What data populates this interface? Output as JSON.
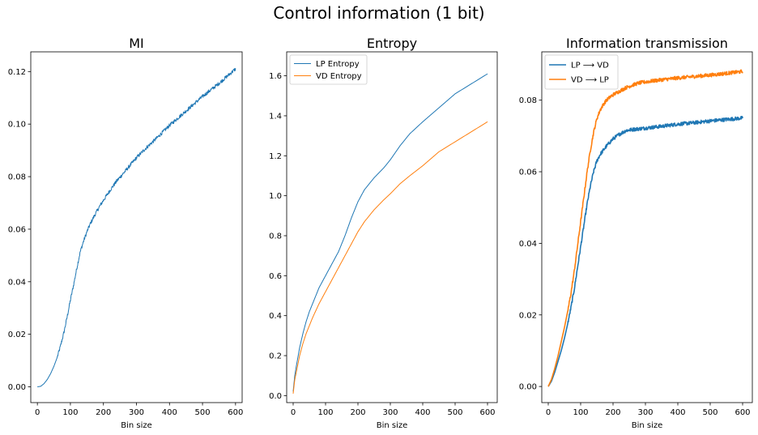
{
  "figure_title": "Control information (1 bit)",
  "chart_data": [
    {
      "type": "line",
      "title": "MI",
      "xlabel": "Bin size",
      "ylabel": "",
      "xlim": [
        -20,
        620
      ],
      "ylim": [
        -0.006,
        0.1275
      ],
      "xticks": [
        0,
        100,
        200,
        300,
        400,
        500,
        600
      ],
      "yticks": [
        0.0,
        0.02,
        0.04,
        0.06,
        0.08,
        0.1,
        0.12
      ],
      "ytick_labels": [
        "0.00",
        "0.02",
        "0.04",
        "0.06",
        "0.08",
        "0.10",
        "0.12"
      ],
      "grid": false,
      "legend": null,
      "series": [
        {
          "color": "#1f77b4",
          "linewidth": 1,
          "noise": 0.0007,
          "x": [
            0,
            10,
            20,
            30,
            40,
            50,
            60,
            70,
            80,
            90,
            100,
            110,
            120,
            130,
            140,
            150,
            160,
            170,
            180,
            190,
            200,
            220,
            240,
            260,
            280,
            300,
            330,
            360,
            400,
            450,
            500,
            550,
            600
          ],
          "y": [
            0.0,
            0.0002,
            0.0012,
            0.0028,
            0.005,
            0.0078,
            0.0112,
            0.0155,
            0.0205,
            0.0265,
            0.033,
            0.039,
            0.0455,
            0.0515,
            0.0555,
            0.059,
            0.062,
            0.0645,
            0.0668,
            0.069,
            0.071,
            0.0748,
            0.0783,
            0.0812,
            0.0842,
            0.0872,
            0.091,
            0.0945,
            0.0995,
            0.105,
            0.1105,
            0.1155,
            0.121
          ]
        }
      ]
    },
    {
      "type": "line",
      "title": "Entropy",
      "xlabel": "Bin size",
      "ylabel": "",
      "xlim": [
        -20,
        630
      ],
      "ylim": [
        -0.035,
        1.72
      ],
      "xticks": [
        0,
        100,
        200,
        300,
        400,
        500,
        600
      ],
      "yticks": [
        0.0,
        0.2,
        0.4,
        0.6,
        0.8,
        1.0,
        1.2,
        1.4,
        1.6
      ],
      "ytick_labels": [
        "0.0",
        "0.2",
        "0.4",
        "0.6",
        "0.8",
        "1.0",
        "1.2",
        "1.4",
        "1.6"
      ],
      "grid": false,
      "legend": "upper-left",
      "series": [
        {
          "name": "LP Entropy",
          "color": "#1f77b4",
          "linewidth": 1,
          "noise": 0,
          "x": [
            0,
            5,
            10,
            20,
            30,
            40,
            50,
            60,
            80,
            100,
            120,
            140,
            160,
            180,
            200,
            220,
            250,
            280,
            300,
            330,
            360,
            400,
            450,
            500,
            550,
            600
          ],
          "y": [
            0.02,
            0.1,
            0.15,
            0.24,
            0.31,
            0.37,
            0.42,
            0.46,
            0.54,
            0.6,
            0.66,
            0.72,
            0.8,
            0.89,
            0.97,
            1.03,
            1.09,
            1.14,
            1.18,
            1.25,
            1.31,
            1.37,
            1.44,
            1.51,
            1.56,
            1.61
          ]
        },
        {
          "name": "VD Entropy",
          "color": "#ff7f0e",
          "linewidth": 1,
          "noise": 0,
          "x": [
            0,
            5,
            10,
            20,
            30,
            40,
            50,
            60,
            80,
            100,
            120,
            140,
            160,
            180,
            200,
            220,
            250,
            280,
            300,
            330,
            360,
            400,
            450,
            500,
            550,
            600
          ],
          "y": [
            0.01,
            0.08,
            0.12,
            0.2,
            0.26,
            0.31,
            0.35,
            0.39,
            0.46,
            0.52,
            0.58,
            0.64,
            0.7,
            0.76,
            0.82,
            0.87,
            0.93,
            0.98,
            1.01,
            1.06,
            1.1,
            1.15,
            1.22,
            1.27,
            1.32,
            1.37
          ]
        }
      ]
    },
    {
      "type": "line",
      "title": "Information transmission",
      "xlabel": "Bin size",
      "ylabel": "",
      "xlim": [
        -20,
        630
      ],
      "ylim": [
        -0.0045,
        0.0935
      ],
      "xticks": [
        0,
        100,
        200,
        300,
        400,
        500,
        600
      ],
      "yticks": [
        0.0,
        0.02,
        0.04,
        0.06,
        0.08
      ],
      "ytick_labels": [
        "0.00",
        "0.02",
        "0.04",
        "0.06",
        "0.08"
      ],
      "grid": false,
      "legend": "upper-left",
      "series": [
        {
          "name": "LP ⟶ VD",
          "color": "#1f77b4",
          "linewidth": 1.6,
          "noise": 0.0005,
          "x": [
            0,
            10,
            20,
            30,
            40,
            50,
            60,
            70,
            80,
            90,
            100,
            110,
            120,
            130,
            140,
            150,
            160,
            170,
            180,
            190,
            200,
            220,
            240,
            260,
            280,
            300,
            350,
            400,
            450,
            500,
            550,
            600
          ],
          "y": [
            0.0,
            0.0015,
            0.004,
            0.007,
            0.01,
            0.0135,
            0.0175,
            0.022,
            0.027,
            0.033,
            0.039,
            0.045,
            0.051,
            0.056,
            0.06,
            0.063,
            0.0648,
            0.066,
            0.0672,
            0.0682,
            0.0692,
            0.0705,
            0.0715,
            0.0718,
            0.072,
            0.0722,
            0.0727,
            0.0733,
            0.0737,
            0.0742,
            0.0746,
            0.075
          ]
        },
        {
          "name": "VD ⟶ LP",
          "color": "#ff7f0e",
          "linewidth": 1.6,
          "noise": 0.0005,
          "x": [
            0,
            10,
            20,
            30,
            40,
            50,
            60,
            70,
            80,
            90,
            100,
            110,
            120,
            130,
            140,
            150,
            160,
            170,
            180,
            190,
            200,
            220,
            240,
            260,
            280,
            300,
            350,
            400,
            450,
            500,
            550,
            600
          ],
          "y": [
            0.0,
            0.002,
            0.005,
            0.0085,
            0.0125,
            0.0165,
            0.021,
            0.026,
            0.032,
            0.039,
            0.046,
            0.053,
            0.06,
            0.066,
            0.071,
            0.0748,
            0.0772,
            0.0788,
            0.08,
            0.0808,
            0.0815,
            0.0825,
            0.0835,
            0.0842,
            0.0848,
            0.0851,
            0.0857,
            0.0862,
            0.0866,
            0.087,
            0.0875,
            0.088
          ]
        }
      ]
    }
  ]
}
